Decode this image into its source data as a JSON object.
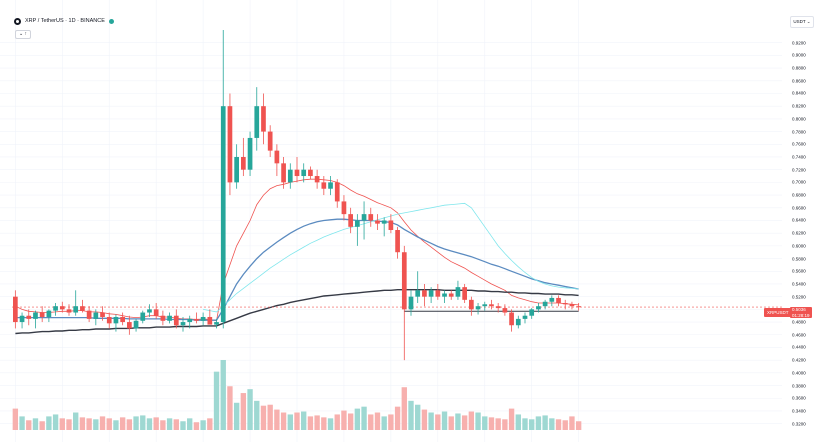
{
  "header": {
    "title": "XRP / TetherUS · 1D · BINANCE",
    "toggle_label": "⌄ ↑"
  },
  "toolbar": {
    "currency_label": "USDT ⌄"
  },
  "price_axis": {
    "ticks": [
      "0.9200",
      "0.9000",
      "0.8800",
      "0.8600",
      "0.8400",
      "0.8200",
      "0.8000",
      "0.7800",
      "0.7600",
      "0.7400",
      "0.7200",
      "0.7000",
      "0.6800",
      "0.6600",
      "0.6400",
      "0.6200",
      "0.6000",
      "0.5800",
      "0.5600",
      "0.5400",
      "0.5200",
      "0.5000",
      "0.4800",
      "0.4600",
      "0.4400",
      "0.4200",
      "0.4000",
      "0.3800",
      "0.3600",
      "0.3400",
      "0.3200"
    ]
  },
  "last_price": {
    "ticker": "XRPUSDT",
    "value": "0.5036",
    "countdown": "01:28:19"
  },
  "colors": {
    "up": "#26a69a",
    "down": "#ef5350",
    "ma_red": "#ef5350",
    "ma_blue": "#5b8bc0",
    "ma_cyan": "#7fe6ec",
    "ma_black": "#363a45"
  },
  "chart_data": {
    "type": "candlestick",
    "symbol": "XRP / TetherUS",
    "interval": "1D",
    "exchange": "BINANCE",
    "ylim": [
      0.31,
      0.94
    ],
    "candles": [
      [
        0.52,
        0.53,
        0.47,
        0.48
      ],
      [
        0.48,
        0.495,
        0.47,
        0.49
      ],
      [
        0.49,
        0.5,
        0.475,
        0.485
      ],
      [
        0.485,
        0.498,
        0.47,
        0.495
      ],
      [
        0.495,
        0.505,
        0.48,
        0.488
      ],
      [
        0.488,
        0.5,
        0.48,
        0.498
      ],
      [
        0.498,
        0.51,
        0.49,
        0.505
      ],
      [
        0.505,
        0.512,
        0.495,
        0.5
      ],
      [
        0.5,
        0.508,
        0.49,
        0.495
      ],
      [
        0.495,
        0.53,
        0.49,
        0.505
      ],
      [
        0.505,
        0.515,
        0.495,
        0.498
      ],
      [
        0.498,
        0.505,
        0.48,
        0.485
      ],
      [
        0.485,
        0.5,
        0.475,
        0.495
      ],
      [
        0.495,
        0.505,
        0.482,
        0.488
      ],
      [
        0.488,
        0.495,
        0.47,
        0.478
      ],
      [
        0.478,
        0.492,
        0.465,
        0.488
      ],
      [
        0.488,
        0.495,
        0.475,
        0.48
      ],
      [
        0.48,
        0.49,
        0.46,
        0.47
      ],
      [
        0.47,
        0.485,
        0.465,
        0.482
      ],
      [
        0.482,
        0.498,
        0.478,
        0.495
      ],
      [
        0.495,
        0.508,
        0.488,
        0.5
      ],
      [
        0.5,
        0.51,
        0.485,
        0.49
      ],
      [
        0.49,
        0.498,
        0.475,
        0.482
      ],
      [
        0.482,
        0.495,
        0.478,
        0.49
      ],
      [
        0.49,
        0.5,
        0.47,
        0.475
      ],
      [
        0.475,
        0.488,
        0.465,
        0.48
      ],
      [
        0.48,
        0.49,
        0.47,
        0.485
      ],
      [
        0.485,
        0.495,
        0.478,
        0.482
      ],
      [
        0.482,
        0.495,
        0.475,
        0.488
      ],
      [
        0.488,
        0.5,
        0.48,
        0.476
      ],
      [
        0.476,
        0.485,
        0.47,
        0.48
      ],
      [
        0.48,
        0.94,
        0.47,
        0.82
      ],
      [
        0.82,
        0.84,
        0.68,
        0.7
      ],
      [
        0.7,
        0.76,
        0.69,
        0.74
      ],
      [
        0.74,
        0.77,
        0.71,
        0.72
      ],
      [
        0.72,
        0.78,
        0.71,
        0.77
      ],
      [
        0.77,
        0.85,
        0.75,
        0.82
      ],
      [
        0.82,
        0.84,
        0.76,
        0.78
      ],
      [
        0.78,
        0.79,
        0.74,
        0.75
      ],
      [
        0.75,
        0.76,
        0.71,
        0.73
      ],
      [
        0.73,
        0.74,
        0.69,
        0.7
      ],
      [
        0.7,
        0.73,
        0.69,
        0.72
      ],
      [
        0.72,
        0.74,
        0.7,
        0.71
      ],
      [
        0.71,
        0.73,
        0.7,
        0.72
      ],
      [
        0.72,
        0.725,
        0.705,
        0.71
      ],
      [
        0.71,
        0.72,
        0.69,
        0.7
      ],
      [
        0.7,
        0.71,
        0.68,
        0.69
      ],
      [
        0.69,
        0.71,
        0.68,
        0.7
      ],
      [
        0.7,
        0.705,
        0.66,
        0.67
      ],
      [
        0.67,
        0.68,
        0.64,
        0.65
      ],
      [
        0.65,
        0.66,
        0.62,
        0.63
      ],
      [
        0.63,
        0.65,
        0.6,
        0.64
      ],
      [
        0.64,
        0.67,
        0.61,
        0.65
      ],
      [
        0.65,
        0.66,
        0.63,
        0.64
      ],
      [
        0.64,
        0.65,
        0.625,
        0.635
      ],
      [
        0.635,
        0.645,
        0.615,
        0.64
      ],
      [
        0.64,
        0.65,
        0.62,
        0.625
      ],
      [
        0.625,
        0.63,
        0.58,
        0.59
      ],
      [
        0.59,
        0.6,
        0.42,
        0.5
      ],
      [
        0.5,
        0.53,
        0.49,
        0.52
      ],
      [
        0.52,
        0.56,
        0.51,
        0.53
      ],
      [
        0.53,
        0.54,
        0.505,
        0.52
      ],
      [
        0.52,
        0.535,
        0.51,
        0.53
      ],
      [
        0.53,
        0.54,
        0.515,
        0.52
      ],
      [
        0.52,
        0.53,
        0.51,
        0.525
      ],
      [
        0.525,
        0.53,
        0.515,
        0.52
      ],
      [
        0.52,
        0.545,
        0.515,
        0.535
      ],
      [
        0.535,
        0.54,
        0.51,
        0.515
      ],
      [
        0.515,
        0.52,
        0.49,
        0.5
      ],
      [
        0.5,
        0.51,
        0.492,
        0.505
      ],
      [
        0.505,
        0.512,
        0.498,
        0.508
      ],
      [
        0.508,
        0.515,
        0.5,
        0.505
      ],
      [
        0.505,
        0.51,
        0.495,
        0.502
      ],
      [
        0.502,
        0.508,
        0.49,
        0.495
      ],
      [
        0.495,
        0.5,
        0.465,
        0.475
      ],
      [
        0.475,
        0.49,
        0.47,
        0.485
      ],
      [
        0.485,
        0.495,
        0.478,
        0.49
      ],
      [
        0.49,
        0.502,
        0.485,
        0.5
      ],
      [
        0.5,
        0.51,
        0.495,
        0.505
      ],
      [
        0.505,
        0.515,
        0.5,
        0.512
      ],
      [
        0.512,
        0.522,
        0.505,
        0.518
      ],
      [
        0.518,
        0.522,
        0.505,
        0.51
      ],
      [
        0.51,
        0.515,
        0.5,
        0.508
      ],
      [
        0.508,
        0.512,
        0.5,
        0.505
      ],
      [
        0.505,
        0.51,
        0.498,
        0.5036
      ]
    ],
    "volume": [
      22,
      14,
      10,
      12,
      9,
      14,
      16,
      12,
      11,
      18,
      13,
      12,
      11,
      14,
      12,
      10,
      13,
      11,
      14,
      15,
      12,
      13,
      10,
      12,
      11,
      9,
      12,
      8,
      10,
      12,
      60,
      72,
      45,
      28,
      38,
      42,
      30,
      25,
      26,
      21,
      18,
      16,
      18,
      19,
      14,
      15,
      13,
      12,
      16,
      20,
      17,
      22,
      24,
      16,
      18,
      14,
      16,
      24,
      44,
      30,
      26,
      21,
      18,
      16,
      19,
      14,
      17,
      15,
      19,
      18,
      14,
      13,
      12,
      11,
      22,
      16,
      12,
      11,
      14,
      15,
      12,
      11,
      10,
      14,
      9
    ],
    "overlays": [
      {
        "color": "#ef5350",
        "values": [
          0.505,
          0.5,
          0.497,
          0.496,
          0.495,
          0.495,
          0.496,
          0.497,
          0.497,
          0.498,
          0.498,
          0.496,
          0.496,
          0.495,
          0.493,
          0.492,
          0.49,
          0.488,
          0.487,
          0.488,
          0.49,
          0.49,
          0.488,
          0.488,
          0.486,
          0.485,
          0.485,
          0.484,
          0.485,
          0.484,
          0.482,
          0.54,
          0.57,
          0.6,
          0.62,
          0.64,
          0.665,
          0.68,
          0.69,
          0.695,
          0.697,
          0.7,
          0.702,
          0.704,
          0.705,
          0.705,
          0.704,
          0.703,
          0.7,
          0.695,
          0.688,
          0.682,
          0.678,
          0.673,
          0.668,
          0.664,
          0.66,
          0.652,
          0.638,
          0.625,
          0.615,
          0.606,
          0.598,
          0.59,
          0.582,
          0.575,
          0.57,
          0.565,
          0.558,
          0.552,
          0.546,
          0.54,
          0.535,
          0.53,
          0.522,
          0.518,
          0.515,
          0.512,
          0.51,
          0.51,
          0.51,
          0.51,
          0.509,
          0.508,
          0.507
        ]
      },
      {
        "color": "#5b8bc0",
        "values": [
          0.487,
          0.487,
          0.487,
          0.487,
          0.487,
          0.487,
          0.487,
          0.487,
          0.487,
          0.487,
          0.487,
          0.487,
          0.486,
          0.486,
          0.486,
          0.486,
          0.486,
          0.485,
          0.485,
          0.485,
          0.485,
          0.485,
          0.485,
          0.484,
          0.484,
          0.484,
          0.484,
          0.483,
          0.483,
          0.483,
          0.483,
          0.5,
          0.52,
          0.54,
          0.555,
          0.568,
          0.58,
          0.59,
          0.598,
          0.606,
          0.613,
          0.62,
          0.626,
          0.631,
          0.635,
          0.638,
          0.64,
          0.641,
          0.642,
          0.642,
          0.641,
          0.64,
          0.64,
          0.64,
          0.639,
          0.638,
          0.637,
          0.633,
          0.626,
          0.62,
          0.614,
          0.609,
          0.604,
          0.599,
          0.595,
          0.592,
          0.589,
          0.586,
          0.583,
          0.579,
          0.575,
          0.571,
          0.568,
          0.564,
          0.56,
          0.556,
          0.552,
          0.548,
          0.545,
          0.542,
          0.54,
          0.538,
          0.536,
          0.534,
          0.532
        ]
      },
      {
        "color": "#7fe6ec",
        "values": [
          null,
          null,
          null,
          null,
          null,
          null,
          null,
          null,
          null,
          null,
          null,
          null,
          null,
          null,
          null,
          null,
          null,
          null,
          null,
          null,
          null,
          null,
          null,
          null,
          null,
          null,
          null,
          null,
          0.5,
          0.498,
          0.496,
          0.505,
          0.515,
          0.525,
          0.533,
          0.541,
          0.549,
          0.557,
          0.565,
          0.572,
          0.579,
          0.586,
          0.592,
          0.598,
          0.604,
          0.609,
          0.614,
          0.618,
          0.622,
          0.626,
          0.629,
          0.632,
          0.635,
          0.638,
          0.641,
          0.644,
          0.647,
          0.65,
          0.652,
          0.654,
          0.656,
          0.658,
          0.66,
          0.662,
          0.664,
          0.665,
          0.666,
          0.667,
          0.66,
          0.645,
          0.63,
          0.615,
          0.6,
          0.588,
          0.577,
          0.567,
          0.558,
          0.55,
          0.544,
          0.54,
          0.537,
          0.535,
          0.534,
          0.533,
          0.532
        ]
      },
      {
        "color": "#363a45",
        "values": [
          0.462,
          0.463,
          0.463,
          0.464,
          0.465,
          0.465,
          0.466,
          0.466,
          0.467,
          0.467,
          0.468,
          0.468,
          0.469,
          0.469,
          0.469,
          0.47,
          0.47,
          0.47,
          0.471,
          0.471,
          0.471,
          0.472,
          0.472,
          0.472,
          0.473,
          0.473,
          0.473,
          0.473,
          0.474,
          0.474,
          0.474,
          0.478,
          0.482,
          0.486,
          0.49,
          0.494,
          0.497,
          0.5,
          0.503,
          0.506,
          0.508,
          0.511,
          0.513,
          0.515,
          0.517,
          0.519,
          0.521,
          0.522,
          0.523,
          0.524,
          0.525,
          0.526,
          0.527,
          0.528,
          0.529,
          0.53,
          0.53,
          0.531,
          0.531,
          0.531,
          0.531,
          0.531,
          0.531,
          0.531,
          0.53,
          0.53,
          0.53,
          0.53,
          0.53,
          0.529,
          0.529,
          0.528,
          0.528,
          0.527,
          0.527,
          0.526,
          0.526,
          0.525,
          0.525,
          0.524,
          0.524,
          0.524,
          0.523,
          0.523,
          0.522
        ]
      }
    ],
    "support_line": {
      "from_index": 58,
      "to_index": 84,
      "value": 0.497
    },
    "last_price_line": 0.5036
  }
}
